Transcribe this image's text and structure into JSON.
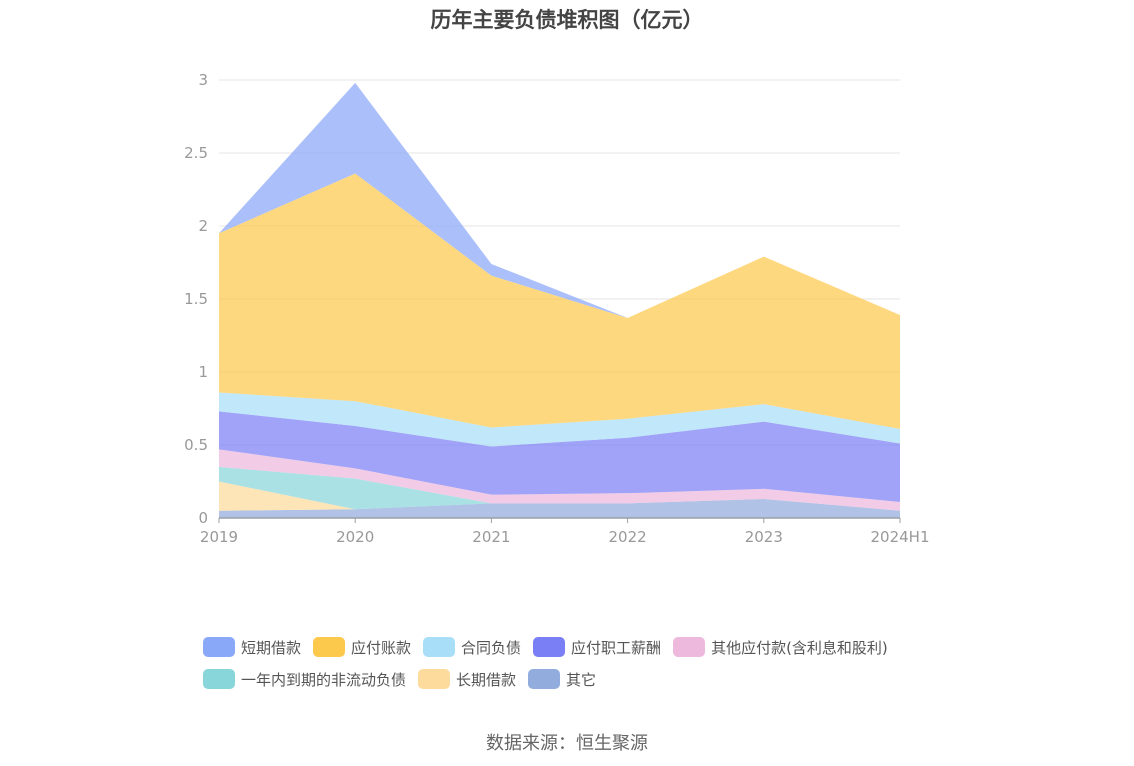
{
  "source": "数据来源：恒生聚源",
  "chart_data": {
    "type": "area",
    "stacked": true,
    "title": "历年主要负债堆积图（亿元）",
    "categories": [
      "2019",
      "2020",
      "2021",
      "2022",
      "2023",
      "2024H1"
    ],
    "ylim": [
      0,
      3
    ],
    "yticks": [
      "0",
      "0.5",
      "1",
      "1.5",
      "2",
      "2.5",
      "3"
    ],
    "grid": true,
    "legend_position": "bottom",
    "series": [
      {
        "name": "短期借款",
        "color": "#8aa8f8",
        "values": [
          0.0,
          0.62,
          0.08,
          0.0,
          0.0,
          0.0
        ]
      },
      {
        "name": "应付账款",
        "color": "#fdc94d",
        "values": [
          1.09,
          1.56,
          1.04,
          0.69,
          1.01,
          0.78
        ]
      },
      {
        "name": "合同负债",
        "color": "#a9def8",
        "values": [
          0.13,
          0.17,
          0.13,
          0.13,
          0.12,
          0.1
        ]
      },
      {
        "name": "应付职工薪酬",
        "color": "#7b7ff5",
        "values": [
          0.26,
          0.29,
          0.33,
          0.38,
          0.46,
          0.4
        ]
      },
      {
        "name": "其他应付款(含利息和股利)",
        "color": "#edb9dc",
        "values": [
          0.12,
          0.07,
          0.06,
          0.07,
          0.07,
          0.06
        ]
      },
      {
        "name": "一年内到期的非流动负债",
        "color": "#88d6d9",
        "values": [
          0.1,
          0.21,
          0.0,
          0.0,
          0.0,
          0.0
        ]
      },
      {
        "name": "长期借款",
        "color": "#fddb9d",
        "values": [
          0.2,
          0.0,
          0.0,
          0.0,
          0.0,
          0.0
        ]
      },
      {
        "name": "其它",
        "color": "#91acdd",
        "values": [
          0.05,
          0.06,
          0.1,
          0.1,
          0.13,
          0.05
        ]
      }
    ]
  }
}
